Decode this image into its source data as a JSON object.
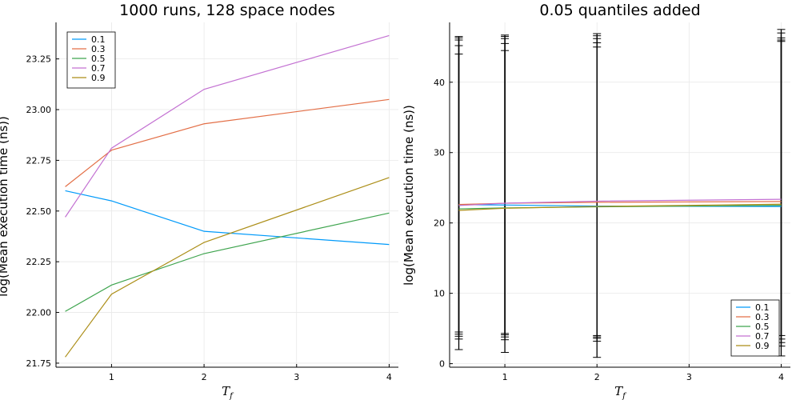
{
  "chart_data": [
    {
      "type": "line",
      "title": "1000 runs, 128 space nodes",
      "xlabel": "T_f",
      "ylabel": "log(Mean execution time (ns))",
      "xlim": [
        0.4,
        4.1
      ],
      "ylim": [
        21.73,
        23.43
      ],
      "xticks": [
        1,
        2,
        3,
        4
      ],
      "xtick_labels": [
        "1",
        "2",
        "3",
        "4"
      ],
      "yticks": [
        21.75,
        22.0,
        22.25,
        22.5,
        22.75,
        23.0,
        23.25
      ],
      "ytick_labels": [
        "21.75",
        "22.00",
        "22.25",
        "22.50",
        "22.75",
        "23.00",
        "23.25"
      ],
      "grid": true,
      "legend_position": "top-left",
      "x": [
        0.5,
        1,
        2,
        4
      ],
      "series": [
        {
          "name": "0.1",
          "color": "#009AFA",
          "values": [
            22.6,
            22.55,
            22.4,
            22.335
          ]
        },
        {
          "name": "0.3",
          "color": "#E36F47",
          "values": [
            22.62,
            22.8,
            22.93,
            23.05
          ]
        },
        {
          "name": "0.5",
          "color": "#3EA44E",
          "values": [
            22.005,
            22.135,
            22.29,
            22.49
          ]
        },
        {
          "name": "0.7",
          "color": "#C371D2",
          "values": [
            22.47,
            22.81,
            23.1,
            23.365
          ]
        },
        {
          "name": "0.9",
          "color": "#AC8E18",
          "values": [
            21.78,
            22.09,
            22.345,
            22.665
          ]
        }
      ]
    },
    {
      "type": "line",
      "title": "0.05 quantiles added",
      "xlabel": "T_f",
      "ylabel": "log(Mean execution time (ns))",
      "xlim": [
        0.4,
        4.1
      ],
      "ylim": [
        -0.5,
        48.5
      ],
      "xticks": [
        1,
        2,
        3,
        4
      ],
      "xtick_labels": [
        "1",
        "2",
        "3",
        "4"
      ],
      "yticks": [
        0,
        10,
        20,
        30,
        40
      ],
      "ytick_labels": [
        "0",
        "10",
        "20",
        "30",
        "40"
      ],
      "grid": true,
      "legend_position": "bottom-right",
      "x": [
        0.5,
        1,
        2,
        4
      ],
      "series": [
        {
          "name": "0.1",
          "color": "#009AFA",
          "values": [
            22.6,
            22.55,
            22.4,
            22.335
          ]
        },
        {
          "name": "0.3",
          "color": "#E36F47",
          "values": [
            22.62,
            22.8,
            22.93,
            23.05
          ]
        },
        {
          "name": "0.5",
          "color": "#3EA44E",
          "values": [
            22.005,
            22.135,
            22.29,
            22.49
          ]
        },
        {
          "name": "0.7",
          "color": "#C371D2",
          "values": [
            22.47,
            22.81,
            23.1,
            23.365
          ]
        },
        {
          "name": "0.9",
          "color": "#AC8E18",
          "values": [
            21.78,
            22.09,
            22.345,
            22.665
          ]
        }
      ],
      "error_bars": [
        {
          "x": 0.5,
          "low": [
            2.0,
            3.5,
            3.9,
            4.2,
            4.5
          ],
          "high": [
            44.0,
            45.2,
            46.0,
            46.3,
            46.5
          ]
        },
        {
          "x": 1,
          "low": [
            1.6,
            3.4,
            3.8,
            4.1,
            4.3
          ],
          "high": [
            44.5,
            45.5,
            46.2,
            46.5,
            46.7
          ]
        },
        {
          "x": 2,
          "low": [
            0.9,
            3.2,
            3.6,
            3.8,
            4.0
          ],
          "high": [
            45.0,
            45.6,
            46.2,
            46.6,
            46.9
          ]
        },
        {
          "x": 4,
          "low": [
            1.1,
            2.5,
            3.0,
            3.5,
            4.0
          ],
          "high": [
            45.8,
            46.0,
            46.3,
            47.0,
            47.5
          ]
        }
      ]
    }
  ]
}
